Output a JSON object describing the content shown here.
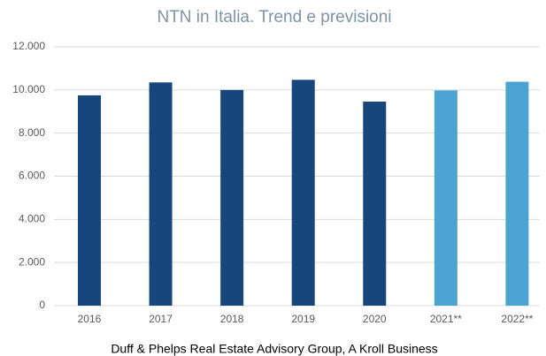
{
  "chart_data": {
    "type": "bar",
    "title": "NTN in Italia. Trend e previsioni",
    "categories": [
      "2016",
      "2017",
      "2018",
      "2019",
      "2020",
      "2021**",
      "2022**"
    ],
    "values": [
      9750,
      10350,
      10000,
      10470,
      9460,
      9980,
      10380
    ],
    "colors": [
      "#17467d",
      "#17467d",
      "#17467d",
      "#17467d",
      "#17467d",
      "#4ba3d1",
      "#4ba3d1"
    ],
    "ylim": [
      0,
      12000
    ],
    "yticks": [
      0,
      {
        "value": 2000,
        "label": "2.000"
      },
      {
        "value": 4000,
        "label": "4.000"
      },
      {
        "value": 6000,
        "label": "6.000"
      },
      {
        "value": 8000,
        "label": "8.000"
      },
      {
        "value": 10000,
        "label": "10.000"
      },
      {
        "value": 12000,
        "label": "12.000"
      }
    ],
    "grid": true,
    "source": "Duff & Phelps Real Estate Advisory Group, A Kroll Business"
  }
}
